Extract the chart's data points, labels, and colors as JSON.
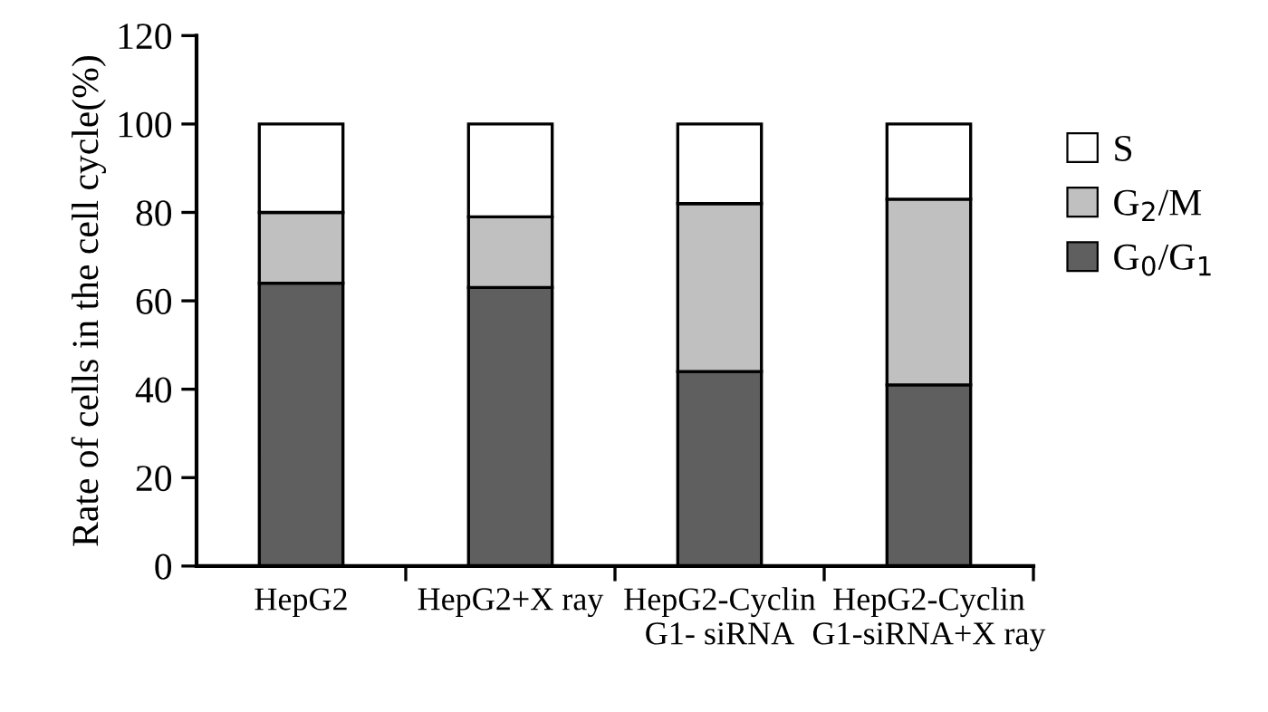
{
  "chart_data": {
    "type": "bar",
    "stacked": true,
    "ylabel": "Rate of cells in the cell cycle(%)",
    "categories": [
      "HepG2",
      "HepG2+X ray",
      "HepG2-Cyclin\nG1- siRNA",
      "HepG2-Cyclin\nG1-siRNA+X ray"
    ],
    "series": [
      {
        "name": "G$_{0}$/G$_{1}$",
        "color": "#5f5f5f",
        "values": [
          64,
          63,
          44,
          41
        ]
      },
      {
        "name": "G$_{2}$/M",
        "color": "#c0c0c0",
        "values": [
          16,
          16,
          38,
          42
        ]
      },
      {
        "name": "S",
        "color": "#ffffff",
        "values": [
          20,
          21,
          18,
          17
        ]
      }
    ],
    "ylim": [
      0,
      120
    ],
    "yticks": [
      0,
      20,
      40,
      60,
      80,
      100,
      120
    ],
    "grid": false,
    "legend": "right"
  }
}
